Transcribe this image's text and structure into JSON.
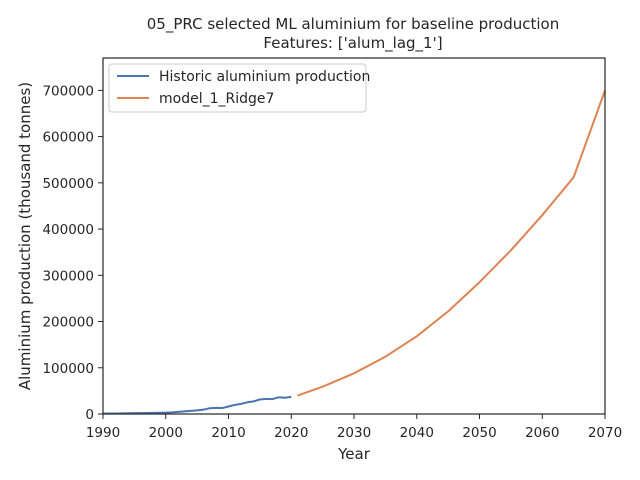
{
  "chart_data": {
    "type": "line",
    "title": "05_PRC selected ML aluminium for baseline production",
    "subtitle": "Features: ['alum_lag_1']",
    "xlabel": "Year",
    "ylabel": "Aluminium production (thousand tonnes)",
    "xlim": [
      1990,
      2070
    ],
    "ylim": [
      0,
      770000
    ],
    "x_ticks": [
      1990,
      2000,
      2010,
      2020,
      2030,
      2040,
      2050,
      2060,
      2070
    ],
    "y_ticks": [
      0,
      100000,
      200000,
      300000,
      400000,
      500000,
      600000,
      700000
    ],
    "grid": false,
    "legend_position": "top-left",
    "series": [
      {
        "name": "Historic aluminium production",
        "color": "#4c72b0",
        "x": [
          1990,
          1991,
          1992,
          1993,
          1994,
          1995,
          1996,
          1997,
          1998,
          1999,
          2000,
          2001,
          2002,
          2003,
          2004,
          2005,
          2006,
          2007,
          2008,
          2009,
          2010,
          2011,
          2012,
          2013,
          2014,
          2015,
          2016,
          2017,
          2018,
          2019,
          2020
        ],
        "y": [
          850,
          960,
          1100,
          1250,
          1500,
          1870,
          1900,
          2180,
          2430,
          2810,
          2990,
          3580,
          4510,
          5550,
          6670,
          7800,
          9360,
          12560,
          13170,
          12890,
          16190,
          19610,
          21950,
          25300,
          27230,
          31410,
          32650,
          32270,
          36120,
          35040,
          37080
        ]
      },
      {
        "name": "model_1_Ridge7",
        "color": "#dd8452",
        "x": [
          2021,
          2025,
          2030,
          2035,
          2040,
          2045,
          2050,
          2055,
          2060,
          2065,
          2070
        ],
        "y": [
          40000,
          59000,
          88000,
          124000,
          168000,
          222000,
          285000,
          354000,
          430000,
          512000,
          700000
        ]
      }
    ]
  }
}
